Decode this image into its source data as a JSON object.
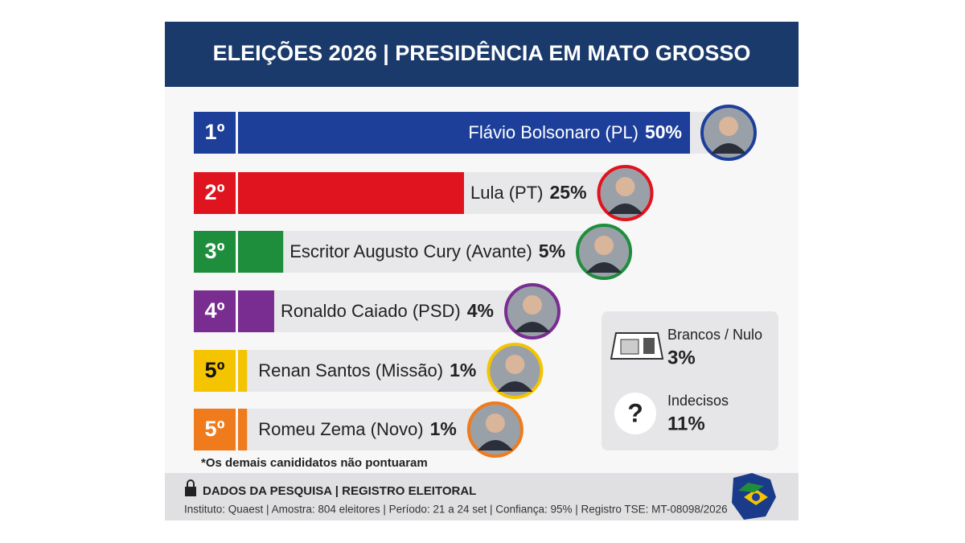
{
  "chart_data": {
    "type": "bar",
    "orientation": "horizontal",
    "title": "ELEIÇÕES 2026 | PRESIDÊNCIA EM MATO GROSSO",
    "ranks": [
      "1º",
      "2º",
      "3º",
      "4º",
      "5º",
      "5º"
    ],
    "categories": [
      "Flávio Bolsonaro (PL)",
      "Lula (PT)",
      "Escritor Augusto Cury (Avante)",
      "Ronaldo Caiado (PSD)",
      "Renan Santos (Missão)",
      "Romeu Zema (Novo)"
    ],
    "values": [
      50,
      25,
      5,
      4,
      1,
      1
    ],
    "value_labels": [
      "50%",
      "25%",
      "5%",
      "4%",
      "1%",
      "1%"
    ],
    "colors": [
      "#1d3f9a",
      "#e0141e",
      "#1f8e3c",
      "#7a2d91",
      "#f5c400",
      "#f07b1c"
    ],
    "xlim": [
      0,
      50
    ],
    "note": "*Os demais canididatos não pontuaram"
  },
  "sidebox": {
    "items": [
      {
        "label": "Brancos / Nulo",
        "value": "3%"
      },
      {
        "label": "Indecisos",
        "value": "11%"
      }
    ]
  },
  "footer": {
    "heading": "DADOS DA PESQUISA | REGISTRO ELEITORAL",
    "details": "Instituto: Quaest | Amostra: 804 eleitores | Período: 21 a 24 set | Confiança: 95% | Registro TSE: MT-08098/2026"
  }
}
